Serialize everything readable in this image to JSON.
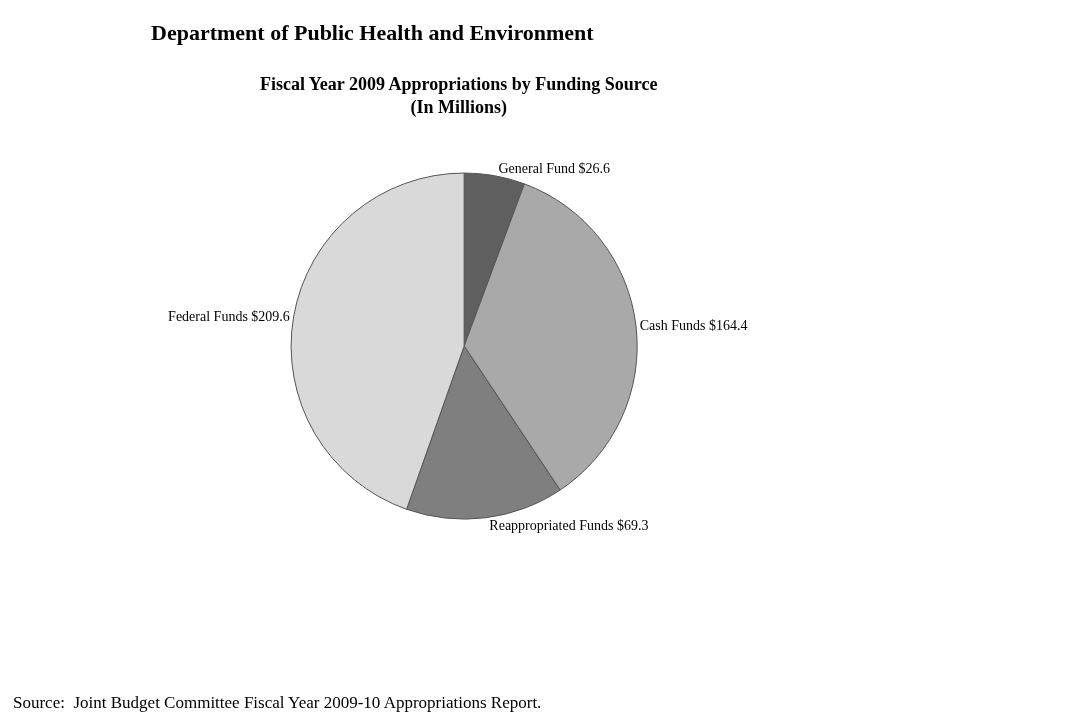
{
  "chart_data": {
    "type": "pie",
    "title": "Department of Public Health and Environment",
    "subtitle": "Fiscal Year 2009 Appropriations by Funding Source\n(In Millions)",
    "categories": [
      "General Fund",
      "Cash Funds",
      "Reappropriated Funds",
      "Federal Funds"
    ],
    "values": [
      26.6,
      164.4,
      69.3,
      209.6
    ],
    "value_labels": [
      "$26.6",
      "$164.4",
      "$69.3",
      "$209.6"
    ],
    "colors": [
      "#5f5f5f",
      "#a9a9a9",
      "#7f7f7f",
      "#d9d9d9"
    ],
    "annotations": [
      "Source:  Joint Budget Committee Fiscal Year 2009-10 Appropriations Report."
    ],
    "legend": false
  }
}
